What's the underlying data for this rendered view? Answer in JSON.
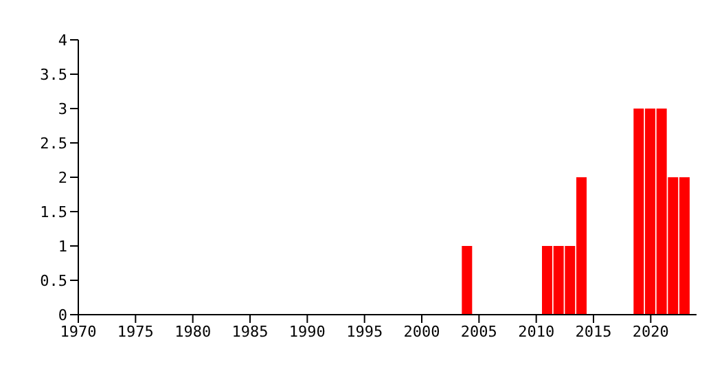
{
  "chart_data": {
    "type": "histogram",
    "bins": [
      2003.5,
      2004.5,
      2005.5,
      2006.5,
      2007.5,
      2008.5,
      2009.5,
      2010.5,
      2011.5,
      2012.5,
      2013.5,
      2014.5,
      2015.5,
      2016.5,
      2017.5,
      2018.5,
      2019.5,
      2020.5,
      2021.5,
      2022.5,
      2023.5
    ],
    "values": [
      1,
      0,
      0,
      0,
      0,
      0,
      0,
      1,
      1,
      1,
      2,
      0,
      0,
      0,
      0,
      3,
      3,
      3,
      2,
      2
    ],
    "color": "#ff0000",
    "xlim": [
      1970,
      2024
    ],
    "xticks": [
      1970,
      1975,
      1980,
      1985,
      1990,
      1995,
      2000,
      2005,
      2010,
      2015,
      2020
    ],
    "ylim": [
      0,
      4
    ],
    "yticks": [
      0,
      0.5,
      1,
      1.5,
      2,
      2.5,
      3,
      3.5,
      4
    ],
    "grid": false
  }
}
